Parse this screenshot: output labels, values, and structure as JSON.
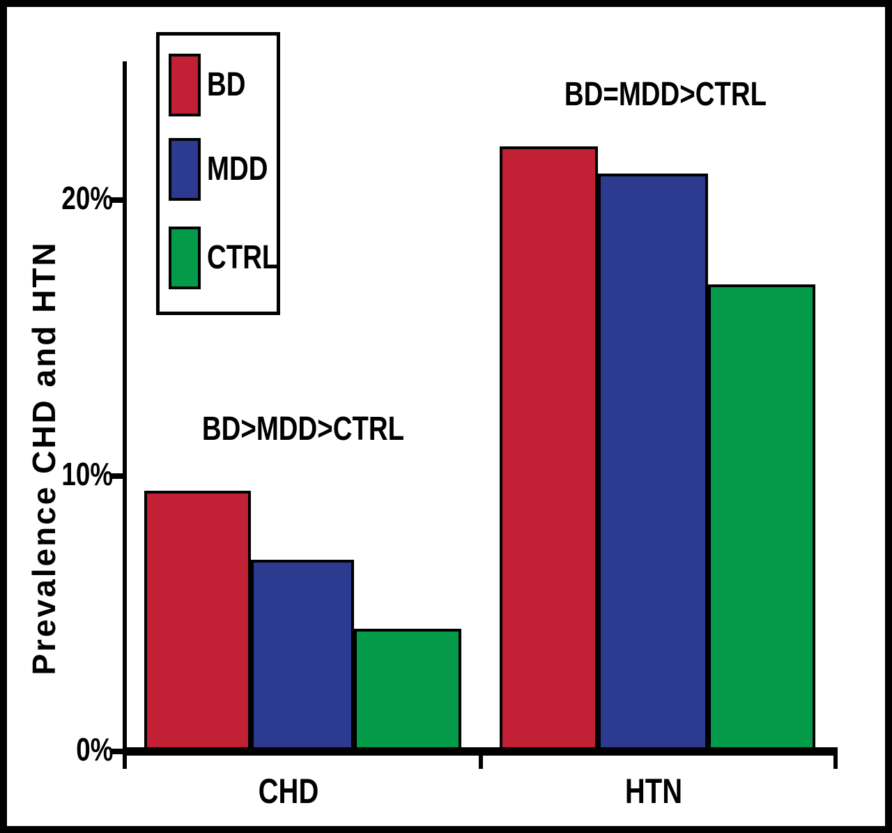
{
  "chart_data": {
    "type": "bar",
    "title": "",
    "xlabel": "",
    "ylabel": "Prevalence CHD and HTN",
    "categories": [
      "CHD",
      "HTN"
    ],
    "series": [
      {
        "name": "BD",
        "color": "#C22035",
        "values": [
          9.5,
          22
        ]
      },
      {
        "name": "MDD",
        "color": "#2C3A90",
        "values": [
          7.0,
          21
        ]
      },
      {
        "name": "CTRL",
        "color": "#039B4A",
        "values": [
          4.5,
          17
        ]
      }
    ],
    "yticks": [
      {
        "label": "0%",
        "value": 0
      },
      {
        "label": "10%",
        "value": 10
      },
      {
        "label": "20%",
        "value": 20
      }
    ],
    "ylim": [
      0,
      25
    ],
    "grid": false,
    "bar_outline_color": "#000000",
    "legend": {
      "position": "upper-left",
      "entries": [
        "BD",
        "MDD",
        "CTRL"
      ]
    },
    "annotations": [
      {
        "text": "BD>MDD>CTRL",
        "category": "CHD"
      },
      {
        "text": "BD=MDD>CTRL",
        "category": "HTN"
      }
    ]
  }
}
